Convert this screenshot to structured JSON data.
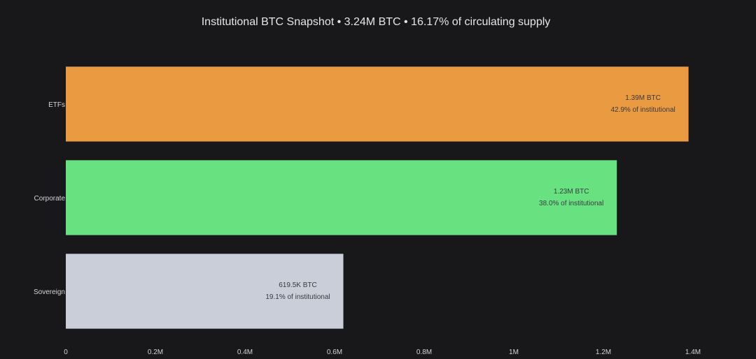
{
  "chart_data": {
    "type": "bar",
    "orientation": "horizontal",
    "title": "Institutional BTC Snapshot • 3.24M BTC • 16.17% of circulating supply",
    "categories": [
      "ETFs",
      "Corporate",
      "Sovereign"
    ],
    "values": [
      1390000,
      1230000,
      619500
    ],
    "colors": [
      "#ea9a40",
      "#68e281",
      "#c9ced8"
    ],
    "value_labels": [
      "1.39M BTC",
      "1.23M BTC",
      "619.5K BTC"
    ],
    "share_labels": [
      "42.9% of institutional",
      "38.0% of institutional",
      "19.1% of institutional"
    ],
    "xlim": [
      0,
      1400000
    ],
    "x_ticks": [
      0,
      200000,
      400000,
      600000,
      800000,
      1000000,
      1200000,
      1400000
    ],
    "x_tick_labels": [
      "0",
      "0.2M",
      "0.4M",
      "0.6M",
      "0.8M",
      "1M",
      "1.2M",
      "1.4M"
    ],
    "grid": false,
    "legend": "none"
  }
}
